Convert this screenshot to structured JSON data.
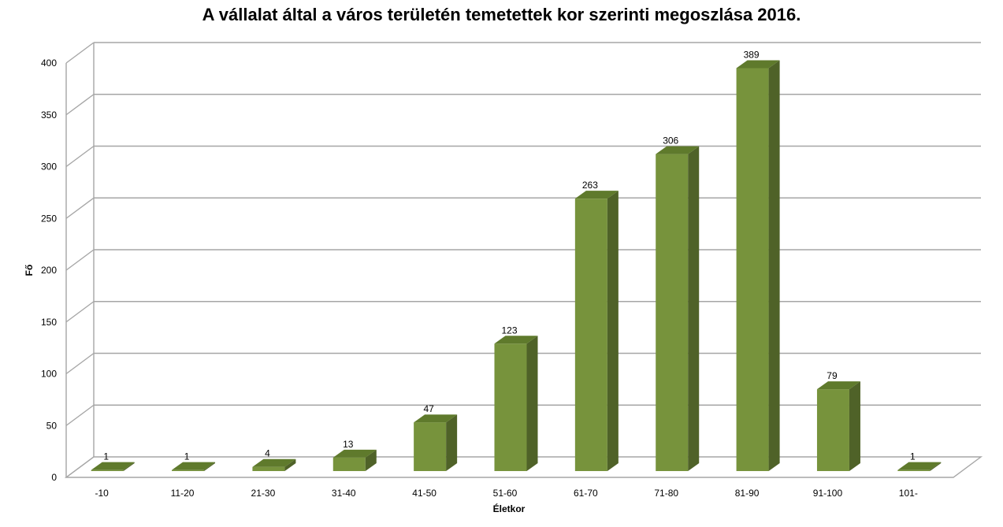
{
  "chart_data": {
    "type": "bar",
    "title": "A vállalat által a város területén temetettek kor szerinti megoszlása 2016.",
    "xlabel": "Életkor",
    "ylabel": "Fő",
    "categories": [
      "-10",
      "11-20",
      "21-30",
      "31-40",
      "41-50",
      "51-60",
      "61-70",
      "71-80",
      "81-90",
      "91-100",
      "101-"
    ],
    "values": [
      1,
      1,
      4,
      13,
      47,
      123,
      263,
      306,
      389,
      79,
      1
    ],
    "ylim": [
      0,
      400
    ],
    "yticks": [
      0,
      50,
      100,
      150,
      200,
      250,
      300,
      350,
      400
    ],
    "grid": true,
    "legend": "none",
    "bar_color": "#77933c",
    "bar_side_color": "#4f6228",
    "bar_top_color": "#5f7a2c",
    "gridline_color": "#a6a6a6"
  }
}
